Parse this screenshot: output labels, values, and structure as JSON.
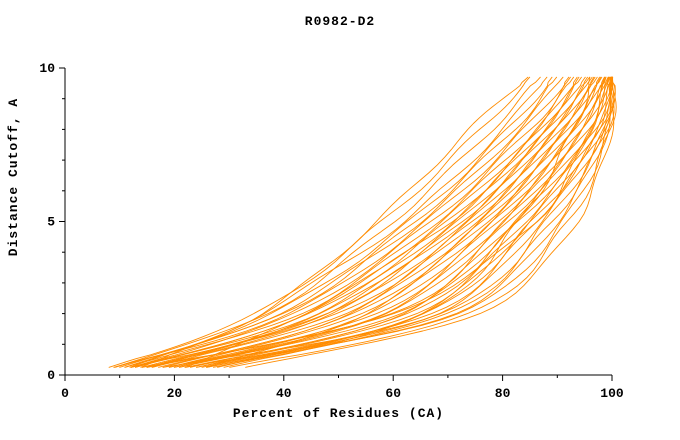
{
  "chart_data": {
    "type": "line",
    "title": "R0982-D2",
    "xlabel": "Percent of Residues (CA)",
    "ylabel": "Distance Cutoff, A",
    "xlim": [
      0,
      100
    ],
    "ylim": [
      0,
      10
    ],
    "x_major_ticks": [
      0,
      20,
      40,
      60,
      80,
      100
    ],
    "x_minor_ticks": [
      10,
      30,
      50,
      70,
      90
    ],
    "y_major_ticks": [
      0,
      5,
      10
    ],
    "y_minor_ticks": [
      1,
      2,
      3,
      4,
      6,
      7,
      8,
      9
    ],
    "line_color": "#ff8c00",
    "axis_color": "#000000",
    "legend": "none",
    "grid": false,
    "y_levels": [
      0.25,
      2,
      5,
      8,
      9.7
    ],
    "curves_x_at_y_levels": [
      [
        8,
        35,
        58,
        76,
        85
      ],
      [
        9,
        37,
        60,
        78,
        87
      ],
      [
        14,
        36,
        62,
        80,
        88
      ],
      [
        10,
        38,
        63,
        81,
        89
      ],
      [
        9,
        40,
        64,
        82,
        90
      ],
      [
        11,
        39,
        65,
        83,
        91
      ],
      [
        9,
        41,
        66,
        84,
        92
      ],
      [
        12,
        42,
        67,
        85,
        92.5
      ],
      [
        11,
        43,
        68,
        86,
        93
      ],
      [
        13,
        44,
        69,
        86.5,
        93.5
      ],
      [
        12,
        45,
        70,
        87,
        94
      ],
      [
        22,
        44,
        70.5,
        87.5,
        94.5
      ],
      [
        13,
        46,
        71,
        88,
        95
      ],
      [
        15,
        47,
        72,
        88.5,
        95.5
      ],
      [
        14,
        48,
        72.5,
        89,
        96
      ],
      [
        16,
        47.5,
        73,
        89.5,
        96.3
      ],
      [
        15,
        49,
        74,
        90,
        96.6
      ],
      [
        12,
        50,
        74.5,
        90.5,
        97
      ],
      [
        16,
        51,
        75,
        91,
        97.3
      ],
      [
        18,
        52,
        76,
        91.5,
        97.6
      ],
      [
        17,
        53,
        76.5,
        92,
        98
      ],
      [
        19,
        54,
        77,
        92.5,
        98.2
      ],
      [
        26,
        55,
        78,
        93,
        98.5
      ],
      [
        20,
        56,
        78.5,
        93.5,
        98.7
      ],
      [
        19,
        57,
        79,
        94,
        99
      ],
      [
        21,
        58,
        80,
        94.5,
        99.2
      ],
      [
        20,
        59,
        80.5,
        95,
        99.4
      ],
      [
        14,
        60,
        81,
        95.5,
        99.5
      ],
      [
        21,
        61,
        82,
        96,
        99.6
      ],
      [
        23,
        62,
        82.5,
        96.5,
        99.7
      ],
      [
        22,
        63,
        83,
        97,
        99.8
      ],
      [
        24,
        64,
        84,
        97.3,
        99.9
      ],
      [
        28,
        65,
        85,
        97.6,
        100
      ],
      [
        25,
        66,
        85.5,
        98,
        100
      ],
      [
        24,
        67,
        86,
        98.3,
        100
      ],
      [
        26,
        68,
        87,
        98.6,
        100
      ],
      [
        18,
        69,
        88,
        98.8,
        100
      ],
      [
        27,
        70,
        89,
        99,
        100
      ],
      [
        26,
        71,
        90,
        99.2,
        100
      ],
      [
        22,
        72,
        91,
        99.4,
        100
      ],
      [
        30,
        74,
        92,
        99.6,
        100
      ],
      [
        33,
        75.5,
        93.5,
        99.8,
        100
      ],
      [
        12,
        36,
        57,
        74,
        84.5
      ],
      [
        29,
        66,
        83,
        93,
        96
      ],
      [
        15,
        60,
        86,
        96,
        99
      ]
    ]
  }
}
